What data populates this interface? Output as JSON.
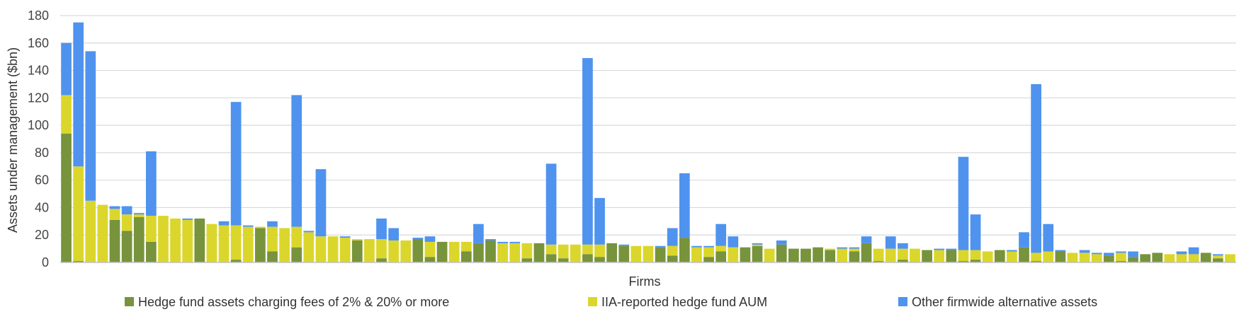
{
  "chart_data": {
    "type": "bar",
    "stacked": true,
    "title": "",
    "xlabel": "Firms",
    "ylabel": "Assets under management ($bn)",
    "ylim": [
      0,
      180
    ],
    "yticks": [
      0,
      20,
      40,
      60,
      80,
      100,
      120,
      140,
      160,
      180
    ],
    "ytick_labels": [
      "0",
      "20",
      "40",
      "60",
      "80",
      "100",
      "120",
      "140",
      "160",
      "180"
    ],
    "grid": true,
    "legend_position": "bottom",
    "series": [
      {
        "name": "Hedge fund assets charging fees of 2% & 20% or more",
        "color": "#77933c",
        "values": [
          94,
          1,
          0,
          0,
          31,
          23,
          33,
          15,
          0,
          0,
          0,
          32,
          0,
          0,
          2,
          0,
          25,
          8,
          0,
          11,
          0,
          0,
          0,
          0,
          16,
          0,
          3,
          0,
          0,
          17,
          4,
          15,
          0,
          8,
          14,
          16,
          0,
          0,
          3,
          14,
          6,
          3,
          0,
          6,
          4,
          14,
          12,
          0,
          0,
          11,
          5,
          18,
          0,
          4,
          8,
          0,
          11,
          12,
          0,
          13,
          10,
          10,
          11,
          9,
          0,
          8,
          14,
          1,
          0,
          2,
          0,
          9,
          0,
          9,
          1,
          2,
          0,
          9,
          0,
          11,
          1,
          0,
          8,
          0,
          0,
          0,
          5,
          1,
          4,
          6,
          7,
          0,
          0,
          0,
          7,
          3,
          0
        ]
      },
      {
        "name": "IIA-reported hedge fund AUM",
        "color": "#dbd62b",
        "values": [
          28,
          69,
          45,
          42,
          8,
          12,
          2,
          19,
          34,
          32,
          31,
          0,
          28,
          27,
          25,
          26,
          1,
          18,
          25,
          15,
          22,
          19,
          19,
          18,
          1,
          17,
          14,
          16,
          16,
          0,
          11,
          0,
          15,
          7,
          0,
          0,
          14,
          14,
          11,
          0,
          7,
          10,
          13,
          7,
          9,
          0,
          0,
          12,
          12,
          0,
          7,
          0,
          11,
          7,
          4,
          11,
          0,
          1,
          10,
          0,
          0,
          0,
          0,
          1,
          10,
          2,
          0,
          9,
          10,
          8,
          10,
          0,
          9,
          0,
          8,
          7,
          8,
          0,
          8,
          0,
          6,
          8,
          0,
          7,
          7,
          6,
          0,
          6,
          0,
          0,
          0,
          6,
          6,
          6,
          0,
          2,
          6
        ]
      },
      {
        "name": "Other firmwide alternative assets",
        "color": "#4f93ef",
        "values": [
          38,
          105,
          109,
          0,
          2,
          6,
          1,
          47,
          0,
          0,
          1,
          0,
          0,
          3,
          90,
          1,
          0,
          4,
          0,
          96,
          1,
          49,
          0,
          1,
          0,
          0,
          15,
          9,
          0,
          1,
          4,
          0,
          0,
          0,
          14,
          1,
          1,
          1,
          0,
          0,
          59,
          0,
          0,
          136,
          34,
          0,
          1,
          0,
          0,
          1,
          13,
          47,
          1,
          1,
          16,
          8,
          0,
          1,
          0,
          3,
          0,
          0,
          0,
          0,
          1,
          1,
          5,
          0,
          9,
          4,
          0,
          0,
          1,
          1,
          68,
          26,
          0,
          0,
          1,
          11,
          123,
          20,
          1,
          0,
          2,
          1,
          2,
          1,
          4,
          0,
          0,
          0,
          2,
          5,
          0,
          1,
          0
        ]
      }
    ]
  }
}
